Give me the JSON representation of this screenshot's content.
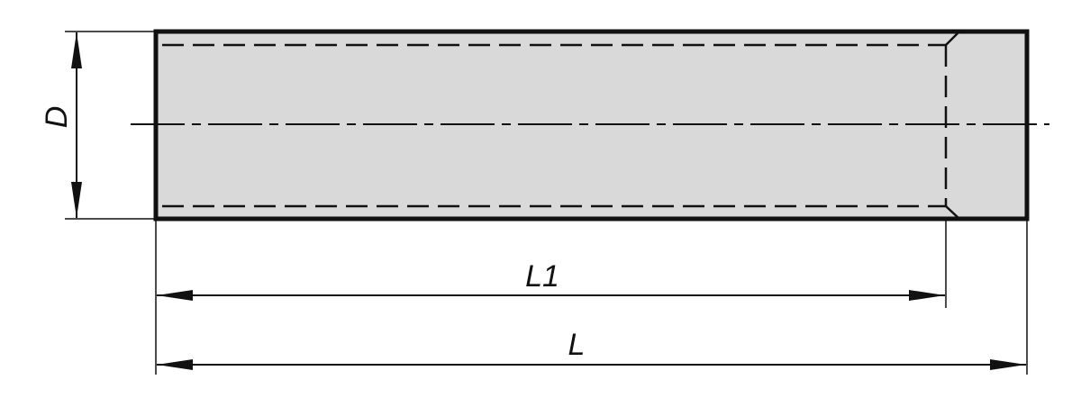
{
  "labels": {
    "diameter": "D",
    "thread_length": "L1",
    "length": "L"
  },
  "colors": {
    "body_fill": "#d9d9d9",
    "line": "#111111"
  }
}
